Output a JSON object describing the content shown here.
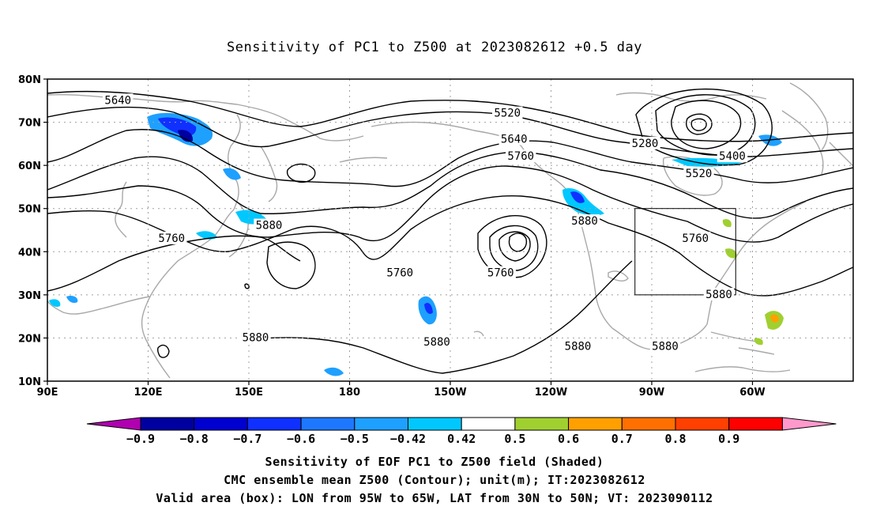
{
  "title": "Sensitivity of PC1 to Z500 at 2023082612 +0.5 day",
  "map": {
    "lat_labels": [
      "80N",
      "70N",
      "60N",
      "50N",
      "40N",
      "30N",
      "20N",
      "10N"
    ],
    "lon_labels": [
      "90E",
      "120E",
      "150E",
      "180",
      "150W",
      "120W",
      "90W",
      "60W"
    ],
    "lat_range": [
      10,
      80
    ],
    "lon_range": [
      90,
      330
    ],
    "gridlines": true,
    "contour_labels": [
      {
        "text": "5640",
        "lon": 111,
        "lat": 75
      },
      {
        "text": "5520",
        "lon": 227,
        "lat": 72
      },
      {
        "text": "5640",
        "lon": 229,
        "lat": 66
      },
      {
        "text": "5760",
        "lon": 231,
        "lat": 62
      },
      {
        "text": "5280",
        "lon": 268,
        "lat": 65
      },
      {
        "text": "5400",
        "lon": 294,
        "lat": 62
      },
      {
        "text": "5520",
        "lon": 284,
        "lat": 58
      },
      {
        "text": "5880",
        "lon": 156,
        "lat": 46
      },
      {
        "text": "5760",
        "lon": 127,
        "lat": 43
      },
      {
        "text": "5760",
        "lon": 195,
        "lat": 35
      },
      {
        "text": "5760",
        "lon": 225,
        "lat": 35
      },
      {
        "text": "5880",
        "lon": 250,
        "lat": 47
      },
      {
        "text": "5760",
        "lon": 283,
        "lat": 43
      },
      {
        "text": "5880",
        "lon": 290,
        "lat": 30
      },
      {
        "text": "5880",
        "lon": 152,
        "lat": 20
      },
      {
        "text": "5880",
        "lon": 206,
        "lat": 19
      },
      {
        "text": "5880",
        "lon": 248,
        "lat": 18
      },
      {
        "text": "5880",
        "lon": 274,
        "lat": 18
      }
    ],
    "valid_box": {
      "lon_w": -95,
      "lon_e": -65,
      "lat_s": 30,
      "lat_n": 50
    }
  },
  "colorbar": {
    "labels": [
      "-0.9",
      "-0.8",
      "-0.7",
      "-0.6",
      "-0.5",
      "-0.42",
      "0.42",
      "0.5",
      "0.6",
      "0.7",
      "0.8",
      "0.9"
    ],
    "colors": [
      "#b000b0",
      "#0000a0",
      "#0000d0",
      "#1030ff",
      "#1e78ff",
      "#1ea0ff",
      "#00c8ff",
      "#ffffff",
      "#a0d030",
      "#ffa000",
      "#ff7000",
      "#ff4000",
      "#ff0000",
      "#ff99cc"
    ]
  },
  "captions": [
    "Sensitivity of EOF PC1 to Z500 field (Shaded)",
    "CMC ensemble mean Z500 (Contour); unit(m); IT:2023082612",
    "Valid area (box): LON from 95W to 65W, LAT from 30N to 50N; VT: 2023090112"
  ]
}
